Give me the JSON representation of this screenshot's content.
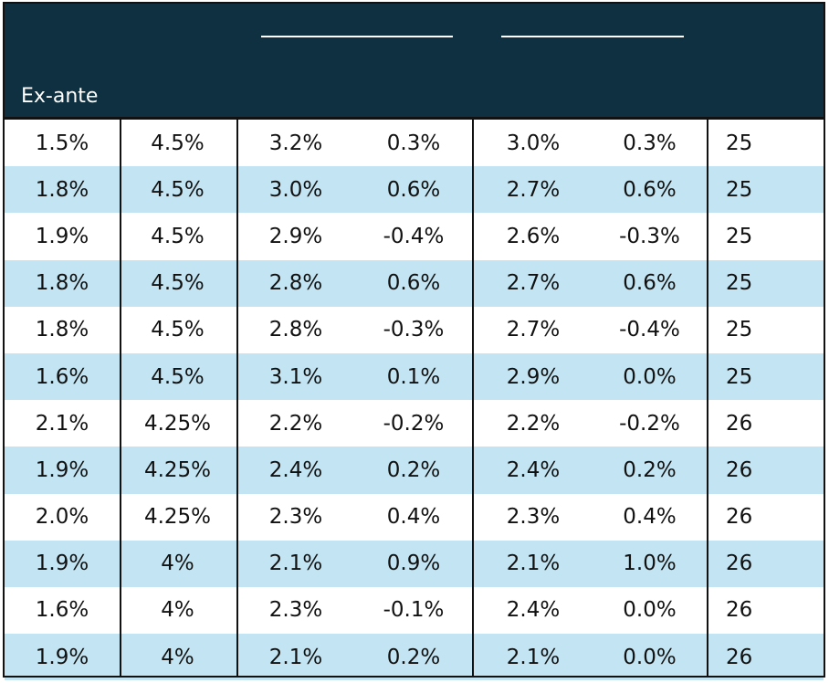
{
  "header": {
    "label": "Ex-ante"
  },
  "rows": [
    [
      "1.5%",
      "4.5%",
      "3.2%",
      "0.3%",
      "3.0%",
      "0.3%",
      "25"
    ],
    [
      "1.8%",
      "4.5%",
      "3.0%",
      "0.6%",
      "2.7%",
      "0.6%",
      "25"
    ],
    [
      "1.9%",
      "4.5%",
      "2.9%",
      "-0.4%",
      "2.6%",
      "-0.3%",
      "25"
    ],
    [
      "1.8%",
      "4.5%",
      "2.8%",
      "0.6%",
      "2.7%",
      "0.6%",
      "25"
    ],
    [
      "1.8%",
      "4.5%",
      "2.8%",
      "-0.3%",
      "2.7%",
      "-0.4%",
      "25"
    ],
    [
      "1.6%",
      "4.5%",
      "3.1%",
      "0.1%",
      "2.9%",
      "0.0%",
      "25"
    ],
    [
      "2.1%",
      "4.25%",
      "2.2%",
      "-0.2%",
      "2.2%",
      "-0.2%",
      "26"
    ],
    [
      "1.9%",
      "4.25%",
      "2.4%",
      "0.2%",
      "2.4%",
      "0.2%",
      "26"
    ],
    [
      "2.0%",
      "4.25%",
      "2.3%",
      "0.4%",
      "2.3%",
      "0.4%",
      "26"
    ],
    [
      "1.9%",
      "4%",
      "2.1%",
      "0.9%",
      "2.1%",
      "1.0%",
      "26"
    ],
    [
      "1.6%",
      "4%",
      "2.3%",
      "-0.1%",
      "2.4%",
      "0.0%",
      "26"
    ],
    [
      "1.9%",
      "4%",
      "2.1%",
      "0.2%",
      "2.1%",
      "0.0%",
      "26"
    ]
  ],
  "colors": {
    "header_bg": "#0e3040",
    "row_shade": "#c3e4f2",
    "row_plain": "#ffffff"
  }
}
